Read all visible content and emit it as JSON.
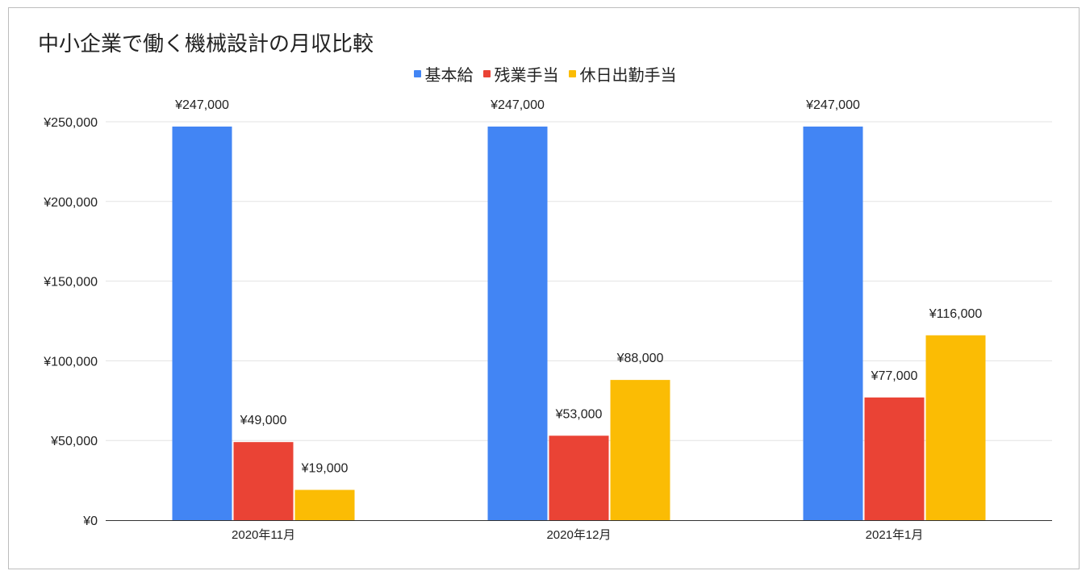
{
  "chart_data": {
    "type": "bar",
    "title": "中小企業で働く機械設計の月収比較",
    "categories": [
      "2020年11月",
      "2020年12月",
      "2021年1月"
    ],
    "series": [
      {
        "name": "基本給",
        "color": "#4285F4",
        "values": [
          247000,
          247000,
          247000
        ],
        "labels": [
          "¥247,000",
          "¥247,000",
          "¥247,000"
        ]
      },
      {
        "name": "残業手当",
        "color": "#EA4335",
        "values": [
          49000,
          53000,
          77000
        ],
        "labels": [
          "¥49,000",
          "¥53,000",
          "¥77,000"
        ]
      },
      {
        "name": "休日出勤手当",
        "color": "#FBBC04",
        "values": [
          19000,
          88000,
          116000
        ],
        "labels": [
          "¥19,000",
          "¥88,000",
          "¥116,000"
        ]
      }
    ],
    "yticks": [
      0,
      50000,
      100000,
      150000,
      200000,
      250000
    ],
    "ytick_labels": [
      "¥0",
      "¥50,000",
      "¥100,000",
      "¥150,000",
      "¥200,000",
      "¥250,000"
    ],
    "ylim": [
      0,
      250000
    ],
    "grid": true,
    "legend_position": "top"
  }
}
